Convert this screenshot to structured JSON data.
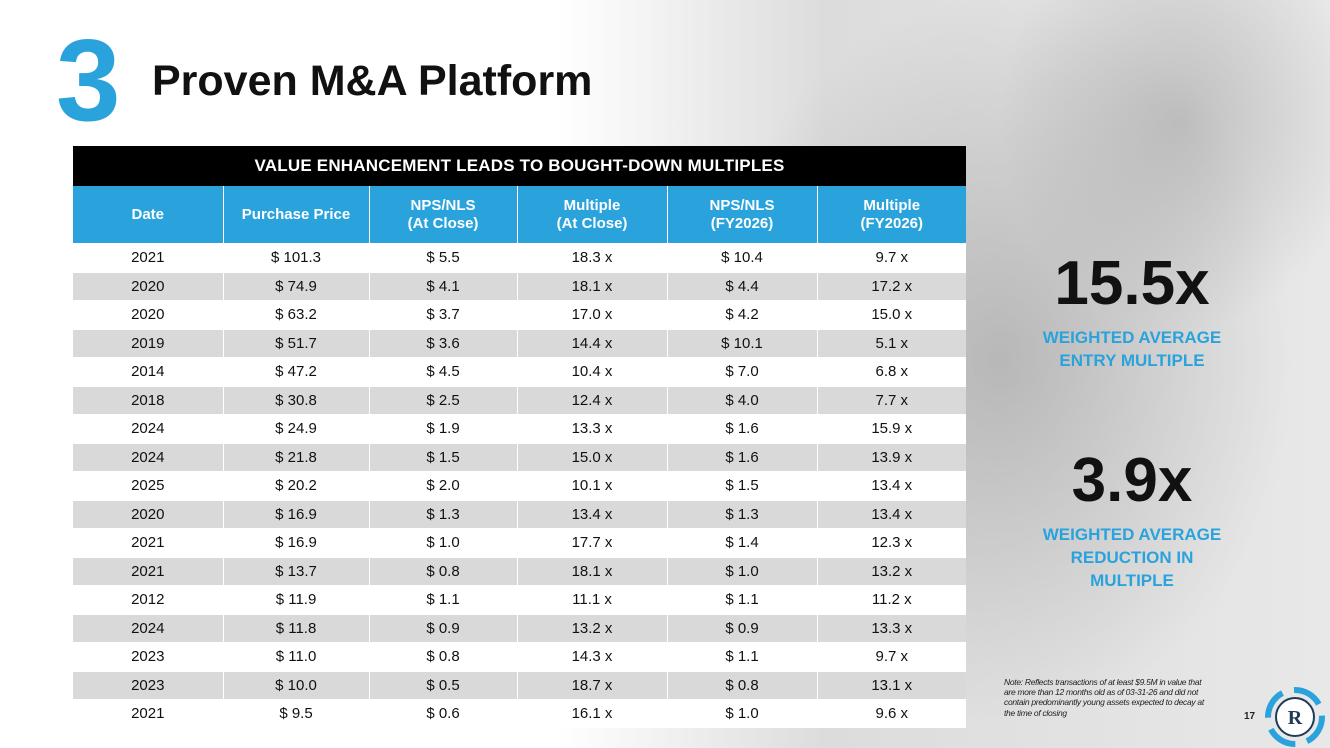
{
  "slide": {
    "number": "3",
    "title": "Proven M&A Platform",
    "page": "17"
  },
  "table": {
    "banner": "VALUE ENHANCEMENT LEADS TO BOUGHT-DOWN MULTIPLES",
    "headers": [
      [
        "Date",
        ""
      ],
      [
        "Purchase Price",
        ""
      ],
      [
        "NPS/NLS",
        "(At Close)"
      ],
      [
        "Multiple",
        "(At Close)"
      ],
      [
        "NPS/NLS",
        "(FY2026)"
      ],
      [
        "Multiple",
        "(FY2026)"
      ]
    ],
    "rows": [
      [
        "2021",
        "$ 101.3",
        "$ 5.5",
        "18.3 x",
        "$ 10.4",
        "9.7 x"
      ],
      [
        "2020",
        "$ 74.9",
        "$ 4.1",
        "18.1 x",
        "$ 4.4",
        "17.2 x"
      ],
      [
        "2020",
        "$ 63.2",
        "$ 3.7",
        "17.0 x",
        "$ 4.2",
        "15.0 x"
      ],
      [
        "2019",
        "$ 51.7",
        "$ 3.6",
        "14.4 x",
        "$ 10.1",
        "5.1 x"
      ],
      [
        "2014",
        "$ 47.2",
        "$ 4.5",
        "10.4 x",
        "$ 7.0",
        "6.8 x"
      ],
      [
        "2018",
        "$ 30.8",
        "$ 2.5",
        "12.4 x",
        "$ 4.0",
        "7.7 x"
      ],
      [
        "2024",
        "$ 24.9",
        "$ 1.9",
        "13.3 x",
        "$ 1.6",
        "15.9 x"
      ],
      [
        "2024",
        "$ 21.8",
        "$ 1.5",
        "15.0 x",
        "$ 1.6",
        "13.9 x"
      ],
      [
        "2025",
        "$ 20.2",
        "$ 2.0",
        "10.1 x",
        "$ 1.5",
        "13.4 x"
      ],
      [
        "2020",
        "$ 16.9",
        "$ 1.3",
        "13.4 x",
        "$ 1.3",
        "13.4 x"
      ],
      [
        "2021",
        "$ 16.9",
        "$ 1.0",
        "17.7 x",
        "$ 1.4",
        "12.3 x"
      ],
      [
        "2021",
        "$ 13.7",
        "$ 0.8",
        "18.1 x",
        "$ 1.0",
        "13.2 x"
      ],
      [
        "2012",
        "$ 11.9",
        "$ 1.1",
        "11.1 x",
        "$ 1.1",
        "11.2 x"
      ],
      [
        "2024",
        "$ 11.8",
        "$ 0.9",
        "13.2 x",
        "$ 0.9",
        "13.3 x"
      ],
      [
        "2023",
        "$ 11.0",
        "$ 0.8",
        "14.3 x",
        "$ 1.1",
        "9.7 x"
      ],
      [
        "2023",
        "$ 10.0",
        "$ 0.5",
        "18.7 x",
        "$ 0.8",
        "13.1 x"
      ],
      [
        "2021",
        "$ 9.5",
        "$ 0.6",
        "16.1 x",
        "$ 1.0",
        "9.6 x"
      ]
    ]
  },
  "stats": {
    "entry": {
      "value": "15.5x",
      "label": "WEIGHTED AVERAGE ENTRY MULTIPLE"
    },
    "reduction": {
      "value": "3.9x",
      "label": "WEIGHTED AVERAGE REDUCTION IN MULTIPLE"
    }
  },
  "note": "Note: Reflects transactions of at least $9.5M in value that are more than 12 months old as of 03-31-26 and did not contain predominantly young assets expected to decay at the time of closing",
  "logo": {
    "letter": "R"
  },
  "colors": {
    "accent": "#2aa3dd",
    "banner": "#000000",
    "stripe": "#d9d9d9"
  }
}
